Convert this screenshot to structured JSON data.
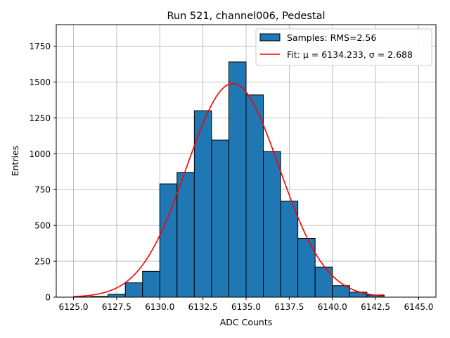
{
  "chart_data": {
    "type": "bar",
    "title": "Run 521, channel006, Pedestal",
    "xlabel": "ADC Counts",
    "ylabel": "Entries",
    "xlim": [
      6124.0,
      6146.0
    ],
    "ylim": [
      0,
      1900
    ],
    "grid": true,
    "legend_placement": "top-right",
    "bin_width": 1.0,
    "bin_starts": [
      6125,
      6126,
      6127,
      6128,
      6129,
      6130,
      6131,
      6132,
      6133,
      6134,
      6135,
      6136,
      6137,
      6138,
      6139,
      6140,
      6141,
      6142
    ],
    "values": [
      2,
      5,
      20,
      100,
      180,
      790,
      870,
      1300,
      1095,
      1640,
      1410,
      1015,
      670,
      410,
      210,
      80,
      35,
      15
    ],
    "xticks": [
      6125.0,
      6127.5,
      6130.0,
      6132.5,
      6135.0,
      6137.5,
      6140.0,
      6142.5,
      6145.0
    ],
    "xtick_labels": [
      "6125.0",
      "6127.5",
      "6130.0",
      "6132.5",
      "6135.0",
      "6137.5",
      "6140.0",
      "6142.5",
      "6145.0"
    ],
    "yticks": [
      0,
      250,
      500,
      750,
      1000,
      1250,
      1500,
      1750
    ],
    "ytick_labels": [
      "0",
      "250",
      "500",
      "750",
      "1000",
      "1250",
      "1500",
      "1750"
    ],
    "series": [
      {
        "name": "Samples: RMS=2.56",
        "kind": "histogram",
        "color": "#1f77b4",
        "edge_color": "#000000"
      },
      {
        "name": "Fit: μ = 6134.233, σ = 2.688",
        "kind": "gaussian",
        "color": "#ff0000",
        "mu": 6134.233,
        "sigma": 2.688,
        "amplitude": 1490,
        "x_range": [
          6125.0,
          6143.0
        ]
      }
    ]
  }
}
